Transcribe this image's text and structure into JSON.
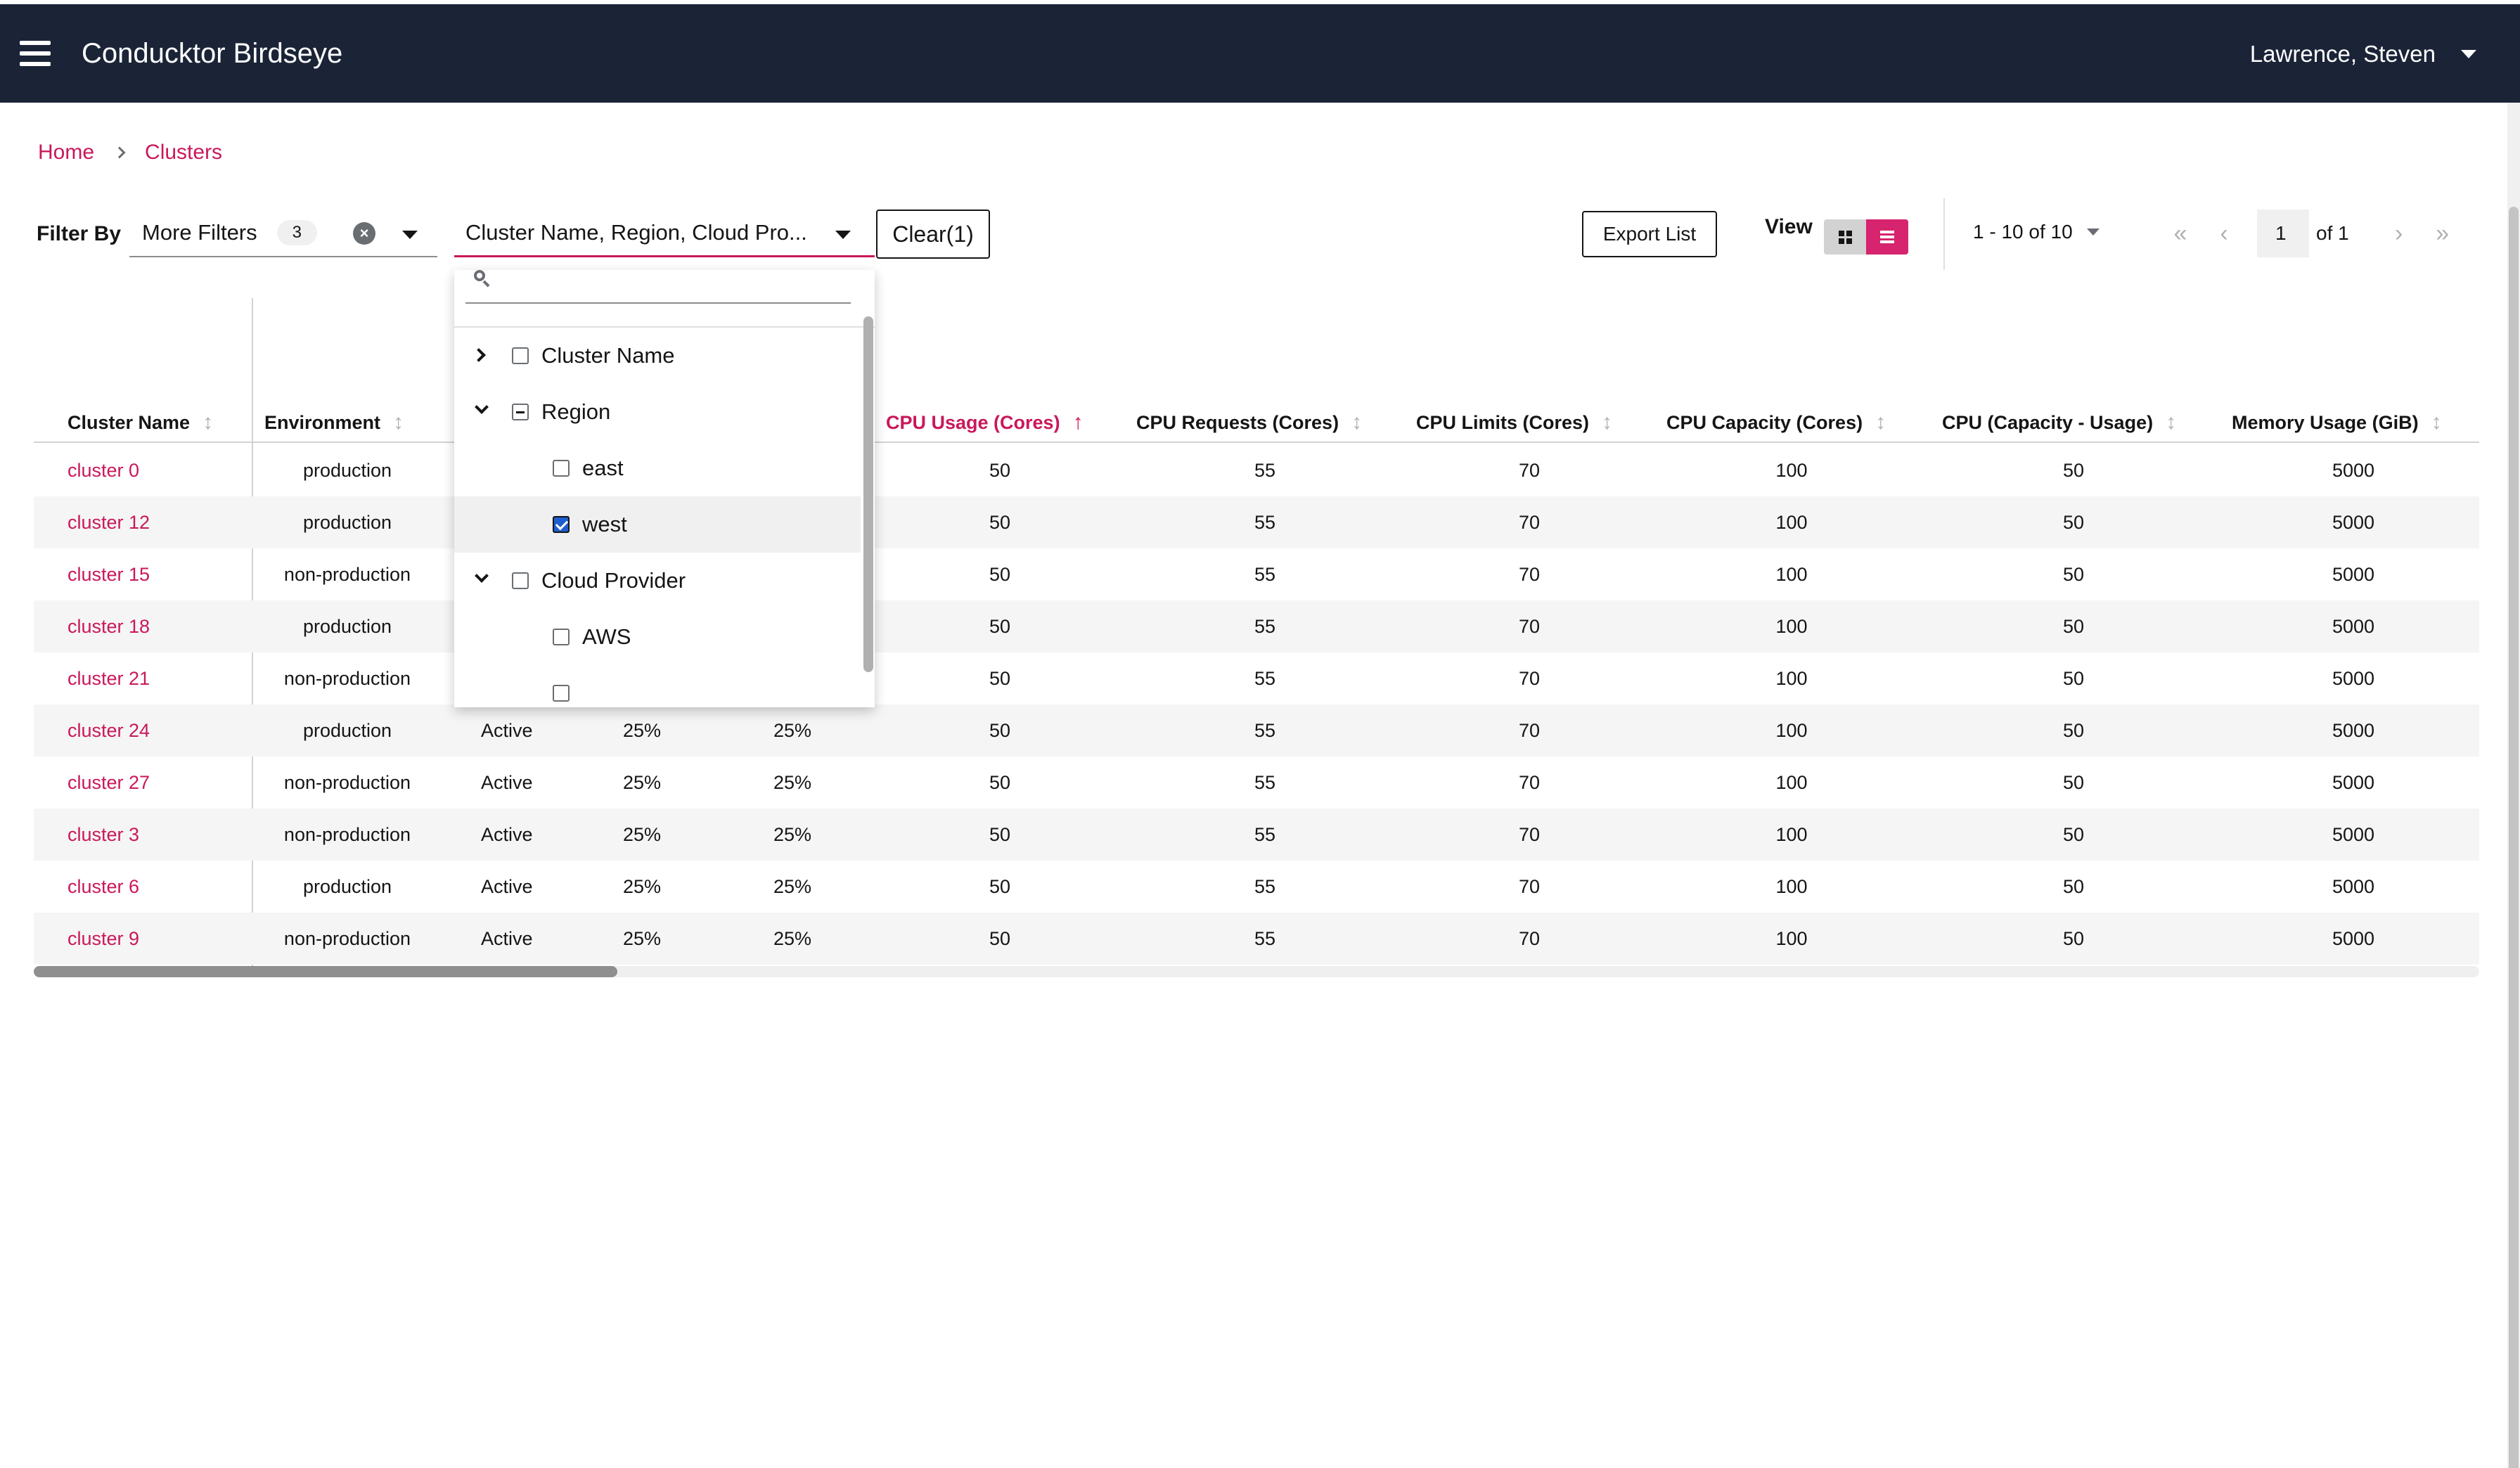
{
  "app": {
    "title": "Conducktor Birdseye",
    "user": "Lawrence, Steven"
  },
  "breadcrumb": [
    "Home",
    "Clusters"
  ],
  "toolbar": {
    "filter_label": "Filter By",
    "more_filters_label": "More Filters",
    "more_filters_count": "3",
    "cluster_select_value": "Cluster Name, Region, Cloud Pro...",
    "clear_label": "Clear(1)",
    "export_label": "Export List",
    "view_label": "View",
    "view_mode": "list"
  },
  "pagination": {
    "range": "1 - 10 of 10",
    "page": "1",
    "of": "of 1"
  },
  "table": {
    "columns": [
      "Cluster Name",
      "Environment",
      "",
      "",
      "",
      "CPU Usage (Cores)",
      "CPU Requests (Cores)",
      "CPU Limits (Cores)",
      "CPU Capacity (Cores)",
      "CPU (Capacity - Usage)",
      "Memory Usage (GiB)"
    ],
    "sorted_column": "CPU Usage (Cores)",
    "rows": [
      [
        "cluster 0",
        "production",
        "",
        "",
        "",
        "50",
        "55",
        "70",
        "100",
        "50",
        "5000"
      ],
      [
        "cluster 12",
        "production",
        "",
        "",
        "",
        "50",
        "55",
        "70",
        "100",
        "50",
        "5000"
      ],
      [
        "cluster 15",
        "non-production",
        "",
        "",
        "",
        "50",
        "55",
        "70",
        "100",
        "50",
        "5000"
      ],
      [
        "cluster 18",
        "production",
        "",
        "",
        "",
        "50",
        "55",
        "70",
        "100",
        "50",
        "5000"
      ],
      [
        "cluster 21",
        "non-production",
        "",
        "",
        "",
        "50",
        "55",
        "70",
        "100",
        "50",
        "5000"
      ],
      [
        "cluster 24",
        "production",
        "Active",
        "25%",
        "25%",
        "50",
        "55",
        "70",
        "100",
        "50",
        "5000"
      ],
      [
        "cluster 27",
        "non-production",
        "Active",
        "25%",
        "25%",
        "50",
        "55",
        "70",
        "100",
        "50",
        "5000"
      ],
      [
        "cluster 3",
        "non-production",
        "Active",
        "25%",
        "25%",
        "50",
        "55",
        "70",
        "100",
        "50",
        "5000"
      ],
      [
        "cluster 6",
        "production",
        "Active",
        "25%",
        "25%",
        "50",
        "55",
        "70",
        "100",
        "50",
        "5000"
      ],
      [
        "cluster 9",
        "non-production",
        "Active",
        "25%",
        "25%",
        "50",
        "55",
        "70",
        "100",
        "50",
        "5000"
      ]
    ]
  },
  "dropdown": {
    "search_placeholder": "",
    "items": [
      {
        "label": "Cluster Name",
        "level": 0,
        "toggle": "collapsed",
        "state": "unchecked"
      },
      {
        "label": "Region",
        "level": 0,
        "toggle": "expanded",
        "state": "partial"
      },
      {
        "label": "east",
        "level": 1,
        "toggle": "none",
        "state": "unchecked"
      },
      {
        "label": "west",
        "level": 1,
        "toggle": "none",
        "state": "checked"
      },
      {
        "label": "Cloud Provider",
        "level": 0,
        "toggle": "expanded",
        "state": "unchecked"
      },
      {
        "label": "AWS",
        "level": 1,
        "toggle": "none",
        "state": "unchecked"
      },
      {
        "label": "",
        "level": 1,
        "toggle": "none",
        "state": "unchecked"
      }
    ]
  },
  "colors": {
    "topbar": "#1b2437",
    "accent": "#c9185b",
    "checkbox_checked": "#1f5ed1"
  }
}
